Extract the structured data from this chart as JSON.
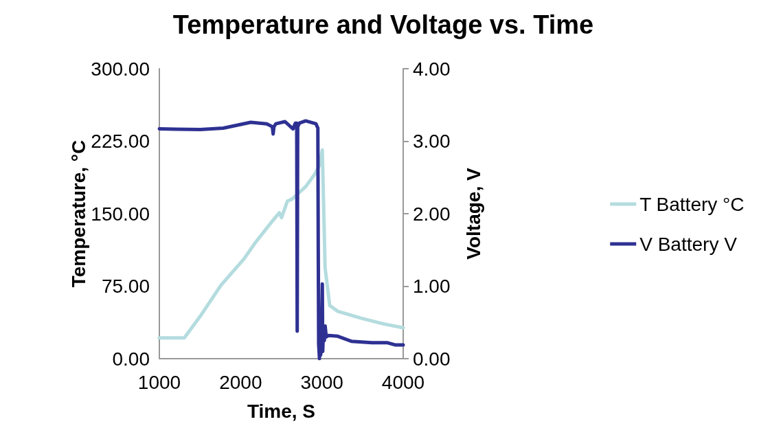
{
  "chart_data": {
    "type": "line",
    "title": "Temperature and Voltage vs. Time",
    "xlabel": "Time, S",
    "ylabel": "Temperature, °C",
    "y2label": "Voltage, V",
    "xlim": [
      1000,
      4000
    ],
    "xticks": [
      1000,
      2000,
      3000,
      4000
    ],
    "ylim": [
      0,
      300
    ],
    "yticks": [
      {
        "value": 0,
        "label": "0.00"
      },
      {
        "value": 75,
        "label": "75.00"
      },
      {
        "value": 150,
        "label": "150.00"
      },
      {
        "value": 225,
        "label": "225.00"
      },
      {
        "value": 300,
        "label": "300.00"
      }
    ],
    "y2lim": [
      0,
      4
    ],
    "y2ticks": [
      {
        "value": 0,
        "label": "0.00"
      },
      {
        "value": 1,
        "label": "1.00"
      },
      {
        "value": 2,
        "label": "2.00"
      },
      {
        "value": 3,
        "label": "3.00"
      },
      {
        "value": 4,
        "label": "4.00"
      }
    ],
    "grid": false,
    "legend": "right",
    "marker": "none",
    "line_style": "solid",
    "series": [
      {
        "name": "T Battery °C",
        "color": "#b4dcdf",
        "x": [
          1000,
          1307,
          1504,
          1758,
          2039,
          2180,
          2377,
          2476,
          2504,
          2575,
          2631,
          2800,
          2913,
          2969,
          3005,
          3039,
          3096,
          3195,
          3476,
          3757,
          4000
        ],
        "values": [
          21.5,
          21.5,
          44,
          76,
          103,
          120,
          141,
          151,
          146,
          163,
          165,
          178,
          191,
          200,
          216,
          94,
          55,
          49,
          42,
          36,
          32
        ]
      },
      {
        "name": "V Battery V",
        "color": "#2e3192",
        "axis": "y2",
        "x": [
          1000,
          1504,
          1786,
          2124,
          2321,
          2390,
          2400,
          2410,
          2434,
          2546,
          2645,
          2673,
          2690,
          2696,
          2702,
          2724,
          2800,
          2927,
          2950,
          2955,
          2960,
          2970,
          2978,
          2985,
          2995,
          3005,
          3010,
          3020,
          3030,
          3040,
          3053,
          3082,
          3195,
          3363,
          3617,
          3808,
          3899,
          4000
        ],
        "values": [
          3.17,
          3.16,
          3.18,
          3.26,
          3.24,
          3.2,
          3.1,
          3.2,
          3.24,
          3.27,
          3.17,
          3.25,
          3.25,
          0.38,
          3.2,
          3.25,
          3.28,
          3.24,
          3.18,
          1.5,
          0.2,
          0.0,
          0.5,
          0.05,
          0.3,
          1.03,
          0.1,
          0.45,
          0.25,
          0.45,
          0.3,
          0.32,
          0.31,
          0.24,
          0.22,
          0.22,
          0.19,
          0.19
        ]
      }
    ]
  }
}
